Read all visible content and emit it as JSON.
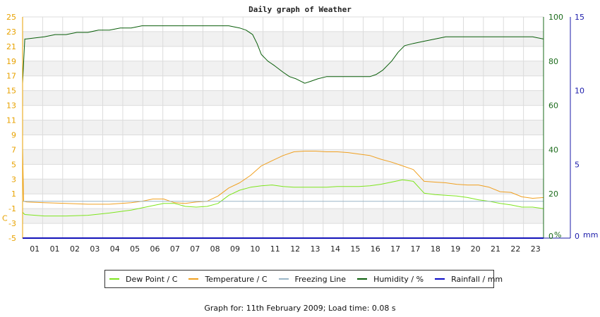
{
  "chart_data": {
    "type": "line",
    "title": "Daily graph of Weather",
    "x_tick_labels": [
      "01",
      "01",
      "02",
      "03",
      "04",
      "05",
      "06",
      "07",
      "07",
      "08",
      "09",
      "10",
      "11",
      "12",
      "13",
      "14",
      "15",
      "16",
      "17",
      "17",
      "18",
      "19",
      "20",
      "21",
      "22",
      "23"
    ],
    "left_axis": {
      "unit": "C",
      "ylim": [
        -5,
        25
      ],
      "ticks": [
        "25",
        "23",
        "21",
        "19",
        "17",
        "15",
        "13",
        "11",
        "9",
        "7",
        "5",
        "3",
        "1",
        "-1",
        "-3",
        "-5"
      ],
      "color": "#e8a200"
    },
    "right_axis_1": {
      "unit": "%",
      "ylim": [
        0,
        100
      ],
      "ticks": [
        "100",
        "80",
        "60",
        "40",
        "20",
        "0"
      ],
      "color": "#1b6b1b"
    },
    "right_axis_2": {
      "unit": "mm",
      "ylim": [
        0,
        15
      ],
      "ticks": [
        "15",
        "10",
        "5",
        "0"
      ],
      "color": "#1a1aaa"
    },
    "grid": true,
    "legend_position": "bottom",
    "series": [
      {
        "name": "Dew Point / C",
        "color": "#7ee51e",
        "axis": "left",
        "x": [
          0.0,
          0.1,
          1.0,
          2.0,
          3.0,
          4.0,
          5.0,
          6.0,
          6.5,
          7.0,
          7.5,
          8.0,
          8.5,
          9.0,
          9.5,
          10.0,
          10.5,
          11.0,
          11.5,
          12.0,
          12.5,
          13.0,
          13.5,
          14.0,
          14.5,
          15.0,
          15.5,
          16.0,
          16.5,
          17.0,
          17.5,
          18.0,
          18.5,
          19.0,
          19.5,
          20.0,
          20.5,
          21.0,
          21.5,
          22.0,
          22.5,
          23.0,
          23.5,
          24.0
        ],
        "values": [
          -1.5,
          -1.8,
          -2.0,
          -2.0,
          -1.9,
          -1.6,
          -1.2,
          -0.6,
          -0.3,
          -0.3,
          -0.7,
          -0.8,
          -0.7,
          -0.3,
          0.8,
          1.5,
          1.9,
          2.1,
          2.2,
          2.0,
          1.9,
          1.9,
          1.9,
          1.9,
          2.0,
          2.0,
          2.0,
          2.1,
          2.3,
          2.6,
          2.9,
          2.7,
          1.1,
          0.9,
          0.8,
          0.7,
          0.5,
          0.2,
          0.0,
          -0.3,
          -0.5,
          -0.8,
          -0.8,
          -1.0
        ]
      },
      {
        "name": "Temperature / C",
        "color": "#f0a020",
        "axis": "left",
        "x": [
          0.0,
          0.05,
          0.2,
          1.0,
          2.0,
          3.0,
          4.0,
          5.0,
          5.5,
          6.0,
          6.5,
          7.0,
          7.5,
          8.0,
          8.5,
          9.0,
          9.5,
          10.0,
          10.5,
          11.0,
          11.5,
          12.0,
          12.5,
          13.0,
          13.5,
          14.0,
          14.5,
          15.0,
          15.5,
          16.0,
          16.5,
          17.0,
          17.5,
          18.0,
          18.5,
          19.0,
          19.5,
          20.0,
          20.5,
          21.0,
          21.5,
          22.0,
          22.5,
          23.0,
          23.5,
          24.0
        ],
        "values": [
          7.0,
          -0.0,
          -0.1,
          -0.2,
          -0.3,
          -0.4,
          -0.4,
          -0.2,
          0.0,
          0.3,
          0.3,
          -0.2,
          -0.3,
          -0.1,
          0.0,
          0.7,
          1.8,
          2.5,
          3.5,
          4.8,
          5.5,
          6.2,
          6.7,
          6.8,
          6.8,
          6.7,
          6.7,
          6.6,
          6.4,
          6.2,
          5.7,
          5.3,
          4.8,
          4.3,
          2.7,
          2.6,
          2.5,
          2.3,
          2.2,
          2.2,
          1.9,
          1.3,
          1.2,
          0.6,
          0.4,
          0.5
        ]
      },
      {
        "name": "Freezing Line",
        "color": "#9ab6c8",
        "axis": "left",
        "x": [
          0,
          24
        ],
        "values": [
          0,
          0
        ]
      },
      {
        "name": "Humidity / %",
        "color": "#0a5e0a",
        "axis": "right_1",
        "x": [
          0.0,
          0.1,
          0.15,
          1.0,
          1.5,
          2.0,
          2.5,
          3.0,
          3.5,
          4.0,
          4.5,
          5.0,
          5.5,
          6.0,
          6.5,
          7.0,
          7.5,
          8.0,
          8.5,
          9.0,
          9.5,
          10.0,
          10.3,
          10.6,
          10.8,
          11.0,
          11.3,
          11.6,
          12.0,
          12.3,
          12.6,
          13.0,
          13.3,
          13.6,
          14.0,
          14.5,
          15.0,
          15.5,
          16.0,
          16.3,
          16.6,
          17.0,
          17.3,
          17.6,
          18.0,
          18.5,
          19.0,
          19.5,
          20.0,
          21.0,
          22.0,
          23.0,
          23.5,
          24.0
        ],
        "values": [
          70,
          90,
          90,
          91,
          92,
          92,
          93,
          93,
          94,
          94,
          95,
          95,
          96,
          96,
          96,
          96,
          96,
          96,
          96,
          96,
          96,
          95,
          94,
          92,
          88,
          83,
          80,
          78,
          75,
          73,
          72,
          70,
          71,
          72,
          73,
          73,
          73,
          73,
          73,
          74,
          76,
          80,
          84,
          87,
          88,
          89,
          90,
          91,
          91,
          91,
          91,
          91,
          91,
          90
        ]
      },
      {
        "name": "Rainfall / mm",
        "color": "#0a0ac8",
        "axis": "right_2",
        "x": [
          0,
          24
        ],
        "values": [
          0,
          0
        ]
      }
    ]
  },
  "footer": "Graph for: 11th February 2009; Load time: 0.08 s"
}
